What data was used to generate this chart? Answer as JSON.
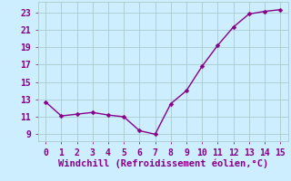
{
  "x": [
    0,
    1,
    2,
    3,
    4,
    5,
    6,
    7,
    8,
    9,
    10,
    11,
    12,
    13,
    14,
    15
  ],
  "y": [
    12.7,
    11.1,
    11.3,
    11.5,
    11.2,
    11.0,
    9.4,
    9.0,
    12.5,
    14.0,
    16.8,
    19.2,
    21.3,
    22.8,
    23.1,
    23.3
  ],
  "line_color": "#880088",
  "marker": "D",
  "marker_size": 2.5,
  "line_width": 1.0,
  "xlabel": "Windchill (Refroidissement éolien,°C)",
  "xlabel_fontsize": 7.5,
  "xlim": [
    -0.5,
    15.5
  ],
  "ylim": [
    8.2,
    24.2
  ],
  "yticks": [
    9,
    11,
    13,
    15,
    17,
    19,
    21,
    23
  ],
  "xticks": [
    0,
    1,
    2,
    3,
    4,
    5,
    6,
    7,
    8,
    9,
    10,
    11,
    12,
    13,
    14,
    15
  ],
  "background_color": "#cceeff",
  "grid_color": "#aacccc",
  "tick_fontsize": 7,
  "tick_color": "#880088",
  "label_color": "#880088",
  "spine_color": "#888888"
}
